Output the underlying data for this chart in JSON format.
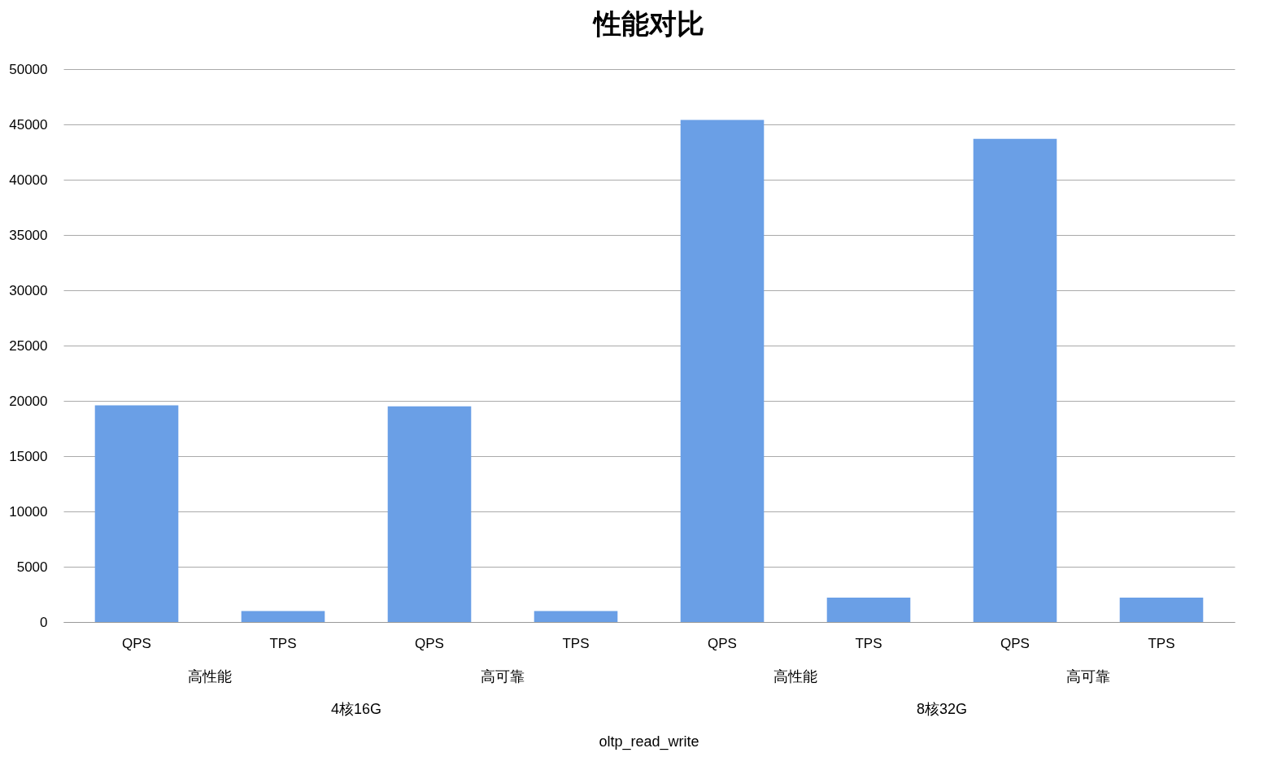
{
  "chart_data": {
    "type": "bar",
    "title": "性能对比",
    "categories": [
      "QPS",
      "TPS",
      "QPS",
      "TPS",
      "QPS",
      "TPS",
      "QPS",
      "TPS"
    ],
    "values": [
      19600,
      1000,
      19500,
      1000,
      45400,
      2200,
      43700,
      2200
    ],
    "color": "#6a9fe6",
    "ylim": [
      0,
      50000
    ],
    "yticks": [
      0,
      5000,
      10000,
      15000,
      20000,
      25000,
      30000,
      35000,
      40000,
      45000,
      50000
    ],
    "grid": "y",
    "annotations": [
      "高性能",
      "高可靠",
      "高性能",
      "高可靠",
      "4核16G",
      "8核32G",
      "oltp_read_write"
    ]
  }
}
